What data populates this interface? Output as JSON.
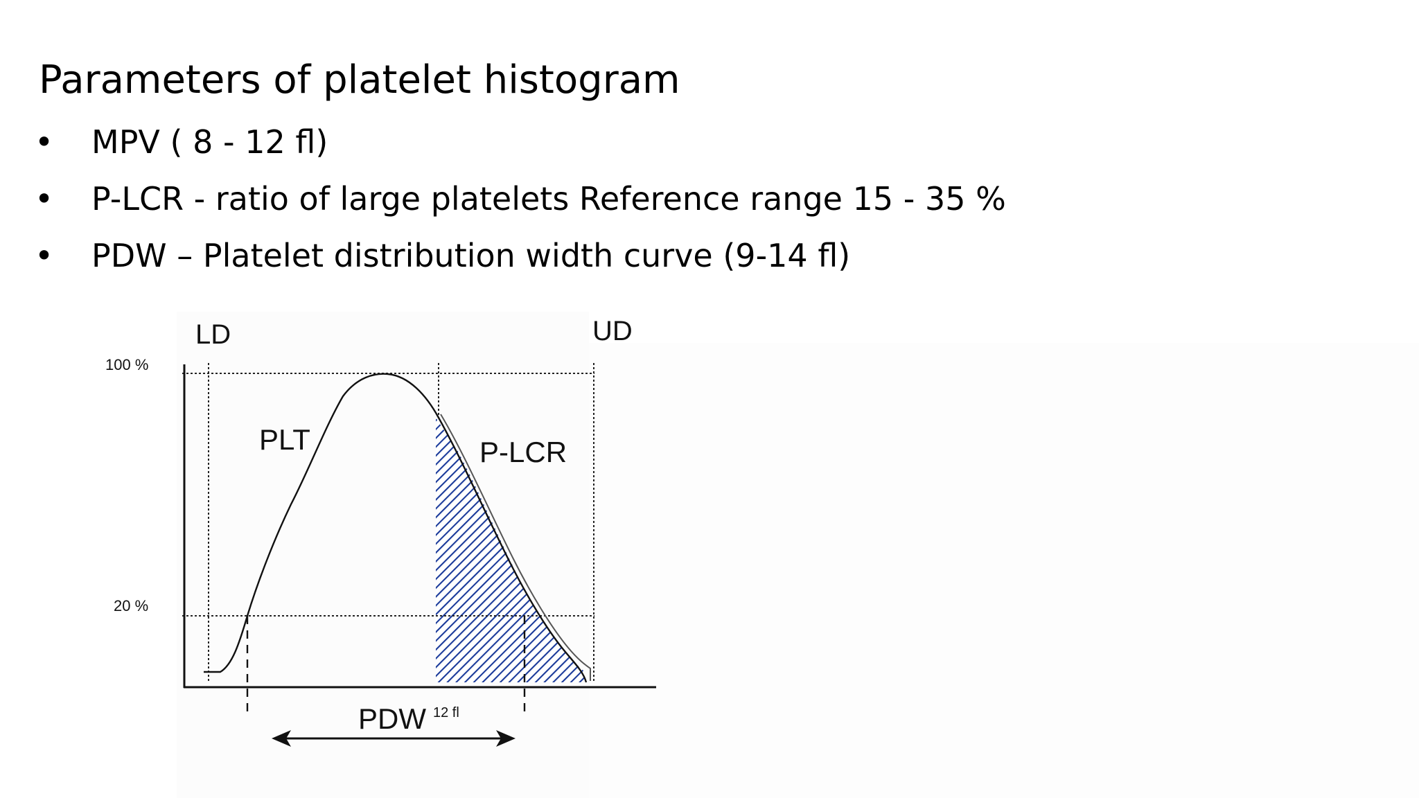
{
  "slide": {
    "title": "Parameters of platelet histogram",
    "bullets": [
      {
        "symbol": "•",
        "text": "MPV ( 8 - 12 fl)"
      },
      {
        "symbol": "•",
        "text": "P-LCR - ratio of large platelets Reference range 15 - 35 %"
      },
      {
        "symbol": "•",
        "text": "PDW – Platelet distribution width curve  (9-14 fl)"
      }
    ]
  },
  "diagram": {
    "labels": {
      "lower_discriminator": "LD",
      "upper_discriminator": "UD",
      "y_100": "100 %",
      "y_20": "20 %",
      "curve": "PLT",
      "shaded_area": "P-LCR",
      "pdw": "PDW",
      "pdw_value": "12 fl"
    },
    "colors": {
      "hatch": "#1a3a9a",
      "hatch_background": "#ffffff",
      "lines": "#111111"
    }
  }
}
